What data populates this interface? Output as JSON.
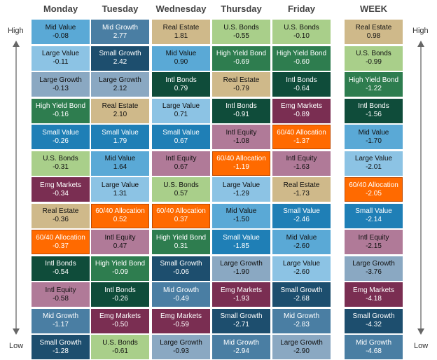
{
  "side_labels": {
    "high": "High",
    "low": "Low"
  },
  "colors": {
    "Mid Value": "#5aa9d6",
    "Large Value": "#8cc3e4",
    "Large Growth": "#8aa8c2",
    "High Yield Bond": "#2e7d4f",
    "Small Value": "#1f7fb6",
    "U.S. Bonds": "#a9cf8a",
    "Emg Markets": "#7a2e52",
    "Real Estate": "#cfb98a",
    "60/40 Allocation": "#ff6a00",
    "Intl Bonds": "#0f4c3a",
    "Intl Equity": "#b07a98",
    "Mid Growth": "#4a7ea3",
    "Small Growth": "#1d4e6e"
  },
  "chart_data": {
    "type": "table",
    "columns": [
      {
        "name": "Monday",
        "entries": [
          {
            "label": "Mid Value",
            "value": "-0.08"
          },
          {
            "label": "Large Value",
            "value": "-0.11"
          },
          {
            "label": "Large Growth",
            "value": "-0.13"
          },
          {
            "label": "High Yield Bond",
            "value": "-0.16"
          },
          {
            "label": "Small Value",
            "value": "-0.26"
          },
          {
            "label": "U.S. Bonds",
            "value": "-0.31"
          },
          {
            "label": "Emg Markets",
            "value": "-0.34"
          },
          {
            "label": "Real Estate",
            "value": "-0.36"
          },
          {
            "label": "60/40 Allocation",
            "value": "-0.37"
          },
          {
            "label": "Intl Bonds",
            "value": "-0.54"
          },
          {
            "label": "Intl Equity",
            "value": "-0.58"
          },
          {
            "label": "Mid Growth",
            "value": "-1.17"
          },
          {
            "label": "Small Growth",
            "value": "-1.28"
          }
        ]
      },
      {
        "name": "Tuesday",
        "entries": [
          {
            "label": "Mid Growth",
            "value": "2.77"
          },
          {
            "label": "Small Growth",
            "value": "2.42"
          },
          {
            "label": "Large Growth",
            "value": "2.12"
          },
          {
            "label": "Real Estate",
            "value": "2.10"
          },
          {
            "label": "Small Value",
            "value": "1.79"
          },
          {
            "label": "Mid Value",
            "value": "1.64"
          },
          {
            "label": "Large Value",
            "value": "1.31"
          },
          {
            "label": "60/40 Allocation",
            "value": "0.52"
          },
          {
            "label": "Intl Equity",
            "value": "0.47"
          },
          {
            "label": "High Yield Bond",
            "value": "-0.09"
          },
          {
            "label": "Intl Bonds",
            "value": "-0.26"
          },
          {
            "label": "Emg Markets",
            "value": "-0.50"
          },
          {
            "label": "U.S. Bonds",
            "value": "-0.61"
          }
        ]
      },
      {
        "name": "Wednesday",
        "entries": [
          {
            "label": "Real Estate",
            "value": "1.81"
          },
          {
            "label": "Mid Value",
            "value": "0.90"
          },
          {
            "label": "Intl Bonds",
            "value": "0.79"
          },
          {
            "label": "Large Value",
            "value": "0.71"
          },
          {
            "label": "Small Value",
            "value": "0.67"
          },
          {
            "label": "Intl Equity",
            "value": "0.67"
          },
          {
            "label": "U.S. Bonds",
            "value": "0.57"
          },
          {
            "label": "60/40 Allocation",
            "value": "0.37"
          },
          {
            "label": "High Yield Bond",
            "value": "0.31"
          },
          {
            "label": "Small Growth",
            "value": "-0.06"
          },
          {
            "label": "Mid Growth",
            "value": "-0.49"
          },
          {
            "label": "Emg Markets",
            "value": "-0.59"
          },
          {
            "label": "Large Growth",
            "value": "-0.93"
          }
        ]
      },
      {
        "name": "Thursday",
        "entries": [
          {
            "label": "U.S. Bonds",
            "value": "-0.55"
          },
          {
            "label": "High Yield Bond",
            "value": "-0.69"
          },
          {
            "label": "Real Estate",
            "value": "-0.79"
          },
          {
            "label": "Intl Bonds",
            "value": "-0.91"
          },
          {
            "label": "Intl Equity",
            "value": "-1.08"
          },
          {
            "label": "60/40 Allocation",
            "value": "-1.19"
          },
          {
            "label": "Large Value",
            "value": "-1.29"
          },
          {
            "label": "Mid Value",
            "value": "-1.50"
          },
          {
            "label": "Small Value",
            "value": "-1.85"
          },
          {
            "label": "Large Growth",
            "value": "-1.90"
          },
          {
            "label": "Emg Markets",
            "value": "-1.93"
          },
          {
            "label": "Small Growth",
            "value": "-2.71"
          },
          {
            "label": "Mid Growth",
            "value": "-2.94"
          }
        ]
      },
      {
        "name": "Friday",
        "entries": [
          {
            "label": "U.S. Bonds",
            "value": "-0.10"
          },
          {
            "label": "High Yield Bond",
            "value": "-0.60"
          },
          {
            "label": "Intl Bonds",
            "value": "-0.64"
          },
          {
            "label": "Emg Markets",
            "value": "-0.89"
          },
          {
            "label": "60/40 Allocation",
            "value": "-1.37"
          },
          {
            "label": "Intl Equity",
            "value": "-1.63"
          },
          {
            "label": "Real Estate",
            "value": "-1.73"
          },
          {
            "label": "Small Value",
            "value": "-2.46"
          },
          {
            "label": "Mid Value",
            "value": "-2.60"
          },
          {
            "label": "Large Value",
            "value": "-2.60"
          },
          {
            "label": "Small Growth",
            "value": "-2.68"
          },
          {
            "label": "Mid Growth",
            "value": "-2.83"
          },
          {
            "label": "Large Growth",
            "value": "-2.90"
          }
        ]
      },
      {
        "name": "WEEK",
        "entries": [
          {
            "label": "Real Estate",
            "value": "0.98"
          },
          {
            "label": "U.S. Bonds",
            "value": "-0.99"
          },
          {
            "label": "High Yield Bond",
            "value": "-1.22"
          },
          {
            "label": "Intl Bonds",
            "value": "-1.56"
          },
          {
            "label": "Mid Value",
            "value": "-1.70"
          },
          {
            "label": "Large Value",
            "value": "-2.01"
          },
          {
            "label": "60/40 Allocation",
            "value": "-2.05"
          },
          {
            "label": "Small Value",
            "value": "-2.14"
          },
          {
            "label": "Intl Equity",
            "value": "-2.15"
          },
          {
            "label": "Large Growth",
            "value": "-3.76"
          },
          {
            "label": "Emg Markets",
            "value": "-4.18"
          },
          {
            "label": "Small Growth",
            "value": "-4.32"
          },
          {
            "label": "Mid Growth",
            "value": "-4.68"
          }
        ]
      }
    ]
  }
}
